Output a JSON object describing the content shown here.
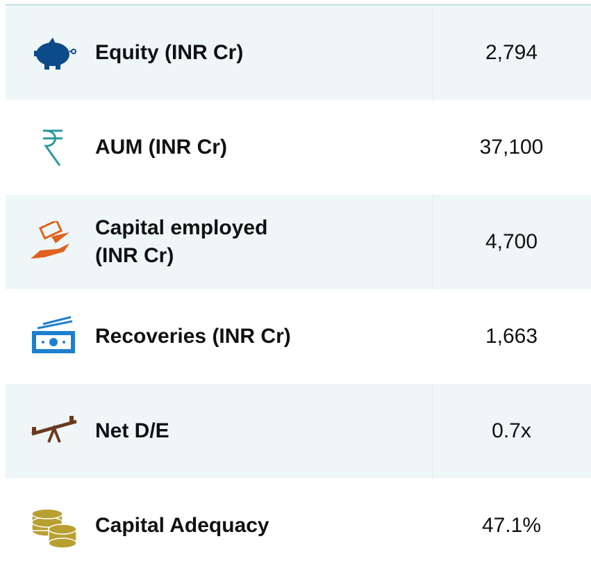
{
  "table": {
    "rows": [
      {
        "label": [
          "Equity (INR Cr)"
        ],
        "value": "2,794"
      },
      {
        "label": [
          "AUM (INR Cr)"
        ],
        "value": "37,100"
      },
      {
        "label": [
          "Capital employed",
          "(INR Cr)"
        ],
        "value": "4,700"
      },
      {
        "label": [
          "Recoveries (INR Cr)"
        ],
        "value": "1,663"
      },
      {
        "label": [
          "Net D/E"
        ],
        "value": "0.7x"
      },
      {
        "label": [
          "Capital Adequacy"
        ],
        "value": "47.1%"
      }
    ]
  }
}
